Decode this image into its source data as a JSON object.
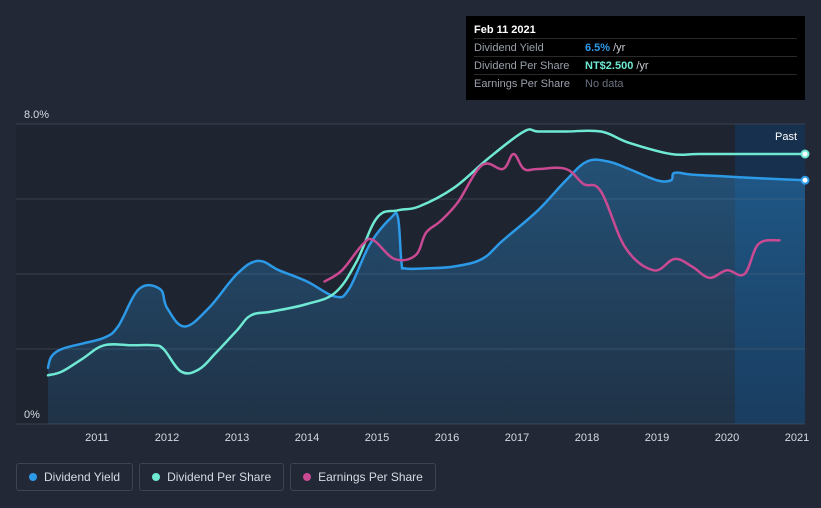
{
  "tooltip": {
    "date": "Feb 11 2021",
    "rows": [
      {
        "label": "Dividend Yield",
        "value": "6.5%",
        "unit": "/yr",
        "color": "#2d9ae8"
      },
      {
        "label": "Dividend Per Share",
        "value": "NT$2.500",
        "unit": "/yr",
        "color": "#6fe9d3"
      },
      {
        "label": "Earnings Per Share",
        "value": "No data",
        "unit": "",
        "color": "#6b7280"
      }
    ]
  },
  "legend": [
    {
      "label": "Dividend Yield",
      "color": "#2d9ae8"
    },
    {
      "label": "Dividend Per Share",
      "color": "#6fe9d3"
    },
    {
      "label": "Earnings Per Share",
      "color": "#c94a93"
    }
  ],
  "chart_data": {
    "type": "line",
    "x_ticks": [
      "2011",
      "2012",
      "2013",
      "2014",
      "2015",
      "2016",
      "2017",
      "2018",
      "2019",
      "2020",
      "2021"
    ],
    "y_ticks": [
      "0%",
      "8.0%"
    ],
    "ylim": [
      0,
      8.0
    ],
    "xlim": [
      2010.3,
      2021.15
    ],
    "past_label": "Past",
    "series": [
      {
        "name": "Dividend Yield",
        "color": "#2d9ae8",
        "x": [
          2010.3,
          2010.35,
          2010.5,
          2010.8,
          2011.1,
          2011.3,
          2011.6,
          2011.9,
          2012.0,
          2012.25,
          2012.6,
          2013.0,
          2013.3,
          2013.6,
          2014.0,
          2014.4,
          2014.6,
          2014.9,
          2015.2,
          2015.3,
          2015.35,
          2015.4,
          2015.7,
          2016.1,
          2016.5,
          2016.8,
          2017.3,
          2017.7,
          2018.0,
          2018.3,
          2018.6,
          2019.0,
          2019.2,
          2019.25,
          2019.5,
          2020.0,
          2020.5,
          2021.15
        ],
        "y": [
          1.5,
          1.8,
          2.0,
          2.15,
          2.3,
          2.6,
          3.6,
          3.6,
          3.1,
          2.6,
          3.1,
          4.0,
          4.35,
          4.1,
          3.8,
          3.4,
          3.6,
          4.8,
          5.5,
          5.5,
          4.3,
          4.15,
          4.15,
          4.2,
          4.4,
          4.9,
          5.7,
          6.5,
          7.0,
          7.0,
          6.8,
          6.5,
          6.5,
          6.7,
          6.65,
          6.6,
          6.55,
          6.5
        ]
      },
      {
        "name": "Dividend Per Share",
        "color": "#6fe9d3",
        "x": [
          2010.3,
          2010.5,
          2010.8,
          2011.1,
          2011.5,
          2011.8,
          2011.95,
          2012.2,
          2012.45,
          2012.7,
          2013.0,
          2013.2,
          2013.5,
          2014.0,
          2014.4,
          2014.7,
          2015.0,
          2015.3,
          2015.6,
          2016.1,
          2016.6,
          2017.1,
          2017.3,
          2017.7,
          2018.2,
          2018.6,
          2019.2,
          2019.6,
          2020.2,
          2021.15
        ],
        "y": [
          1.3,
          1.4,
          1.75,
          2.1,
          2.1,
          2.1,
          2.0,
          1.4,
          1.45,
          1.9,
          2.5,
          2.9,
          3.0,
          3.2,
          3.5,
          4.3,
          5.5,
          5.7,
          5.8,
          6.3,
          7.1,
          7.8,
          7.8,
          7.8,
          7.8,
          7.5,
          7.2,
          7.2,
          7.2,
          7.2
        ]
      },
      {
        "name": "Earnings Per Share",
        "color": "#c94a93",
        "x": [
          2014.25,
          2014.5,
          2014.8,
          2014.95,
          2015.25,
          2015.55,
          2015.7,
          2015.9,
          2016.15,
          2016.5,
          2016.8,
          2016.95,
          2017.1,
          2017.3,
          2017.7,
          2017.95,
          2018.2,
          2018.55,
          2018.95,
          2019.25,
          2019.5,
          2019.75,
          2020.0,
          2020.25,
          2020.45,
          2020.75
        ],
        "y": [
          3.8,
          4.1,
          4.8,
          4.9,
          4.4,
          4.5,
          5.1,
          5.4,
          5.9,
          6.9,
          6.8,
          7.2,
          6.8,
          6.8,
          6.8,
          6.4,
          6.2,
          4.7,
          4.1,
          4.4,
          4.2,
          3.9,
          4.1,
          4.0,
          4.8,
          4.9
        ]
      }
    ]
  }
}
